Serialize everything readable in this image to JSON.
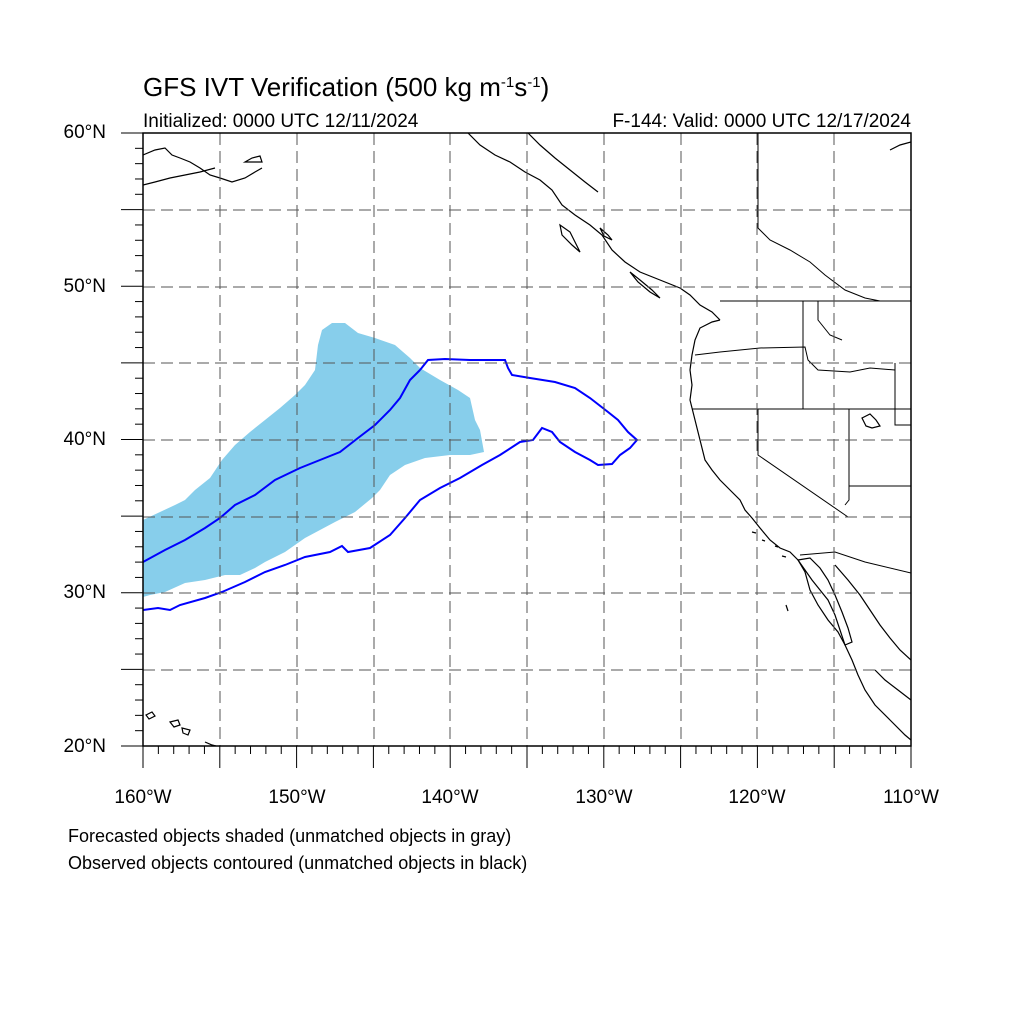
{
  "title": {
    "main": "GFS IVT Verification (500 kg m",
    "exp1": "-1",
    "mid": "s",
    "exp2": "-1",
    "end": ")"
  },
  "initialized": "Initialized: 0000 UTC 12/11/2024",
  "valid": "F-144: Valid: 0000 UTC 12/17/2024",
  "lat_labels": [
    "60°N",
    "50°N",
    "40°N",
    "30°N",
    "20°N"
  ],
  "lon_labels": [
    "160°W",
    "150°W",
    "140°W",
    "130°W",
    "120°W",
    "110°W"
  ],
  "footnotes": [
    "Forecasted objects shaded (unmatched objects in gray)",
    "Observed objects contoured (unmatched objects in black)"
  ],
  "colors": {
    "forecast_fill": "#87ceeb",
    "observed_contour": "#0000ff",
    "coastline": "#000000",
    "gridline": "#555555"
  },
  "map": {
    "projection": "cylindrical",
    "lon_range": [
      -160,
      -110
    ],
    "lat_range": [
      20,
      60
    ],
    "grid_spacing_deg": 5
  }
}
